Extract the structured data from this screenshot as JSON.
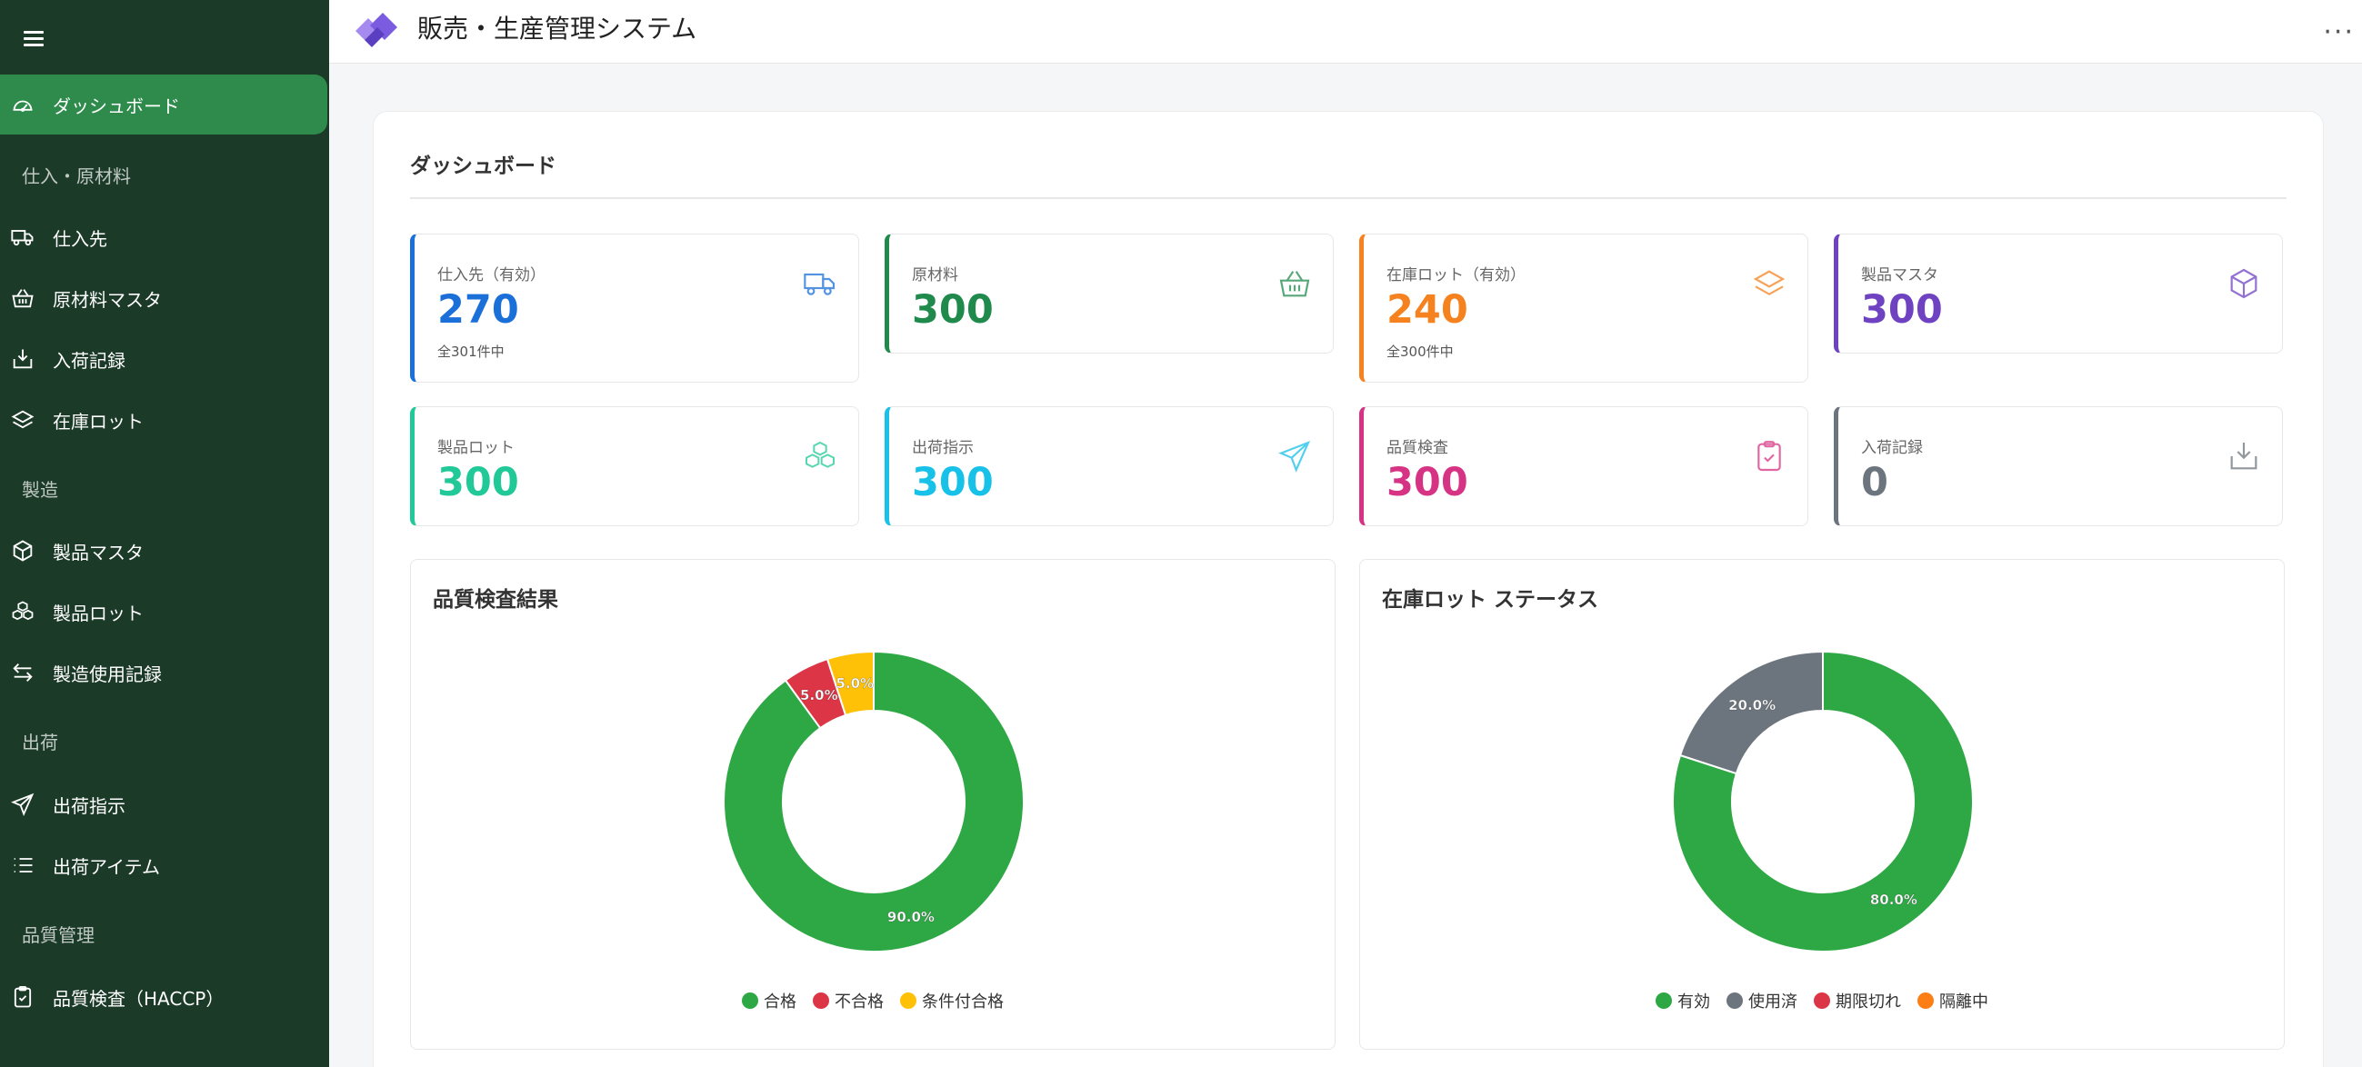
{
  "app": {
    "title": "販売・生産管理システム"
  },
  "sidebar": {
    "items": [
      {
        "label": "ダッシュボード",
        "icon": "gauge-icon",
        "active": true
      },
      {
        "label": "仕入先",
        "icon": "truck-icon"
      },
      {
        "label": "原材料マスタ",
        "icon": "basket-icon"
      },
      {
        "label": "入荷記録",
        "icon": "inbox-in-icon"
      },
      {
        "label": "在庫ロット",
        "icon": "layers-icon"
      },
      {
        "label": "製品マスタ",
        "icon": "box-icon"
      },
      {
        "label": "製品ロット",
        "icon": "boxes-icon"
      },
      {
        "label": "製造使用記録",
        "icon": "arrows-swap-icon"
      },
      {
        "label": "出荷指示",
        "icon": "send-icon"
      },
      {
        "label": "出荷アイテム",
        "icon": "list-icon"
      },
      {
        "label": "品質検査（HACCP）",
        "icon": "clipboard-check-icon"
      }
    ],
    "sections": [
      "仕入・原材料",
      "製造",
      "出荷",
      "品質管理"
    ]
  },
  "dashboard": {
    "title": "ダッシュボード",
    "stats": [
      {
        "label": "仕入先（有効）",
        "value": "270",
        "sub": "全301件中",
        "color": "#1a6fd8",
        "icon": "truck-icon"
      },
      {
        "label": "原材料",
        "value": "300",
        "sub": "",
        "color": "#1f8a4c",
        "icon": "basket-icon"
      },
      {
        "label": "在庫ロット（有効）",
        "value": "240",
        "sub": "全300件中",
        "color": "#f5821f",
        "icon": "layers-icon"
      },
      {
        "label": "製品マスタ",
        "value": "300",
        "sub": "",
        "color": "#6f42c1",
        "icon": "box-icon"
      },
      {
        "label": "製品ロット",
        "value": "300",
        "sub": "",
        "color": "#20c997",
        "icon": "boxes-icon"
      },
      {
        "label": "出荷指示",
        "value": "300",
        "sub": "",
        "color": "#17c1e8",
        "icon": "send-icon"
      },
      {
        "label": "品質検査",
        "value": "300",
        "sub": "",
        "color": "#d63384",
        "icon": "clipboard-check-icon"
      },
      {
        "label": "入荷記録",
        "value": "0",
        "sub": "",
        "color": "#6c757d",
        "icon": "inbox-in-icon"
      }
    ]
  },
  "chart_data": [
    {
      "type": "pie",
      "title": "品質検査結果",
      "categories": [
        "合格",
        "不合格",
        "条件付合格"
      ],
      "values": [
        90,
        5,
        5
      ],
      "labels": [
        "90.0%",
        "5.0%",
        "5.0%"
      ],
      "colors": [
        "#2ea844",
        "#dc3545",
        "#ffc107"
      ],
      "legend": "bottom"
    },
    {
      "type": "pie",
      "title": "在庫ロット ステータス",
      "categories": [
        "有効",
        "使用済",
        "期限切れ",
        "隔離中"
      ],
      "values": [
        80,
        20,
        0,
        0
      ],
      "labels": [
        "80.0%",
        "20.0%",
        "",
        ""
      ],
      "colors": [
        "#2ea844",
        "#6c757d",
        "#dc3545",
        "#fd7e14"
      ],
      "legend": "bottom"
    }
  ]
}
